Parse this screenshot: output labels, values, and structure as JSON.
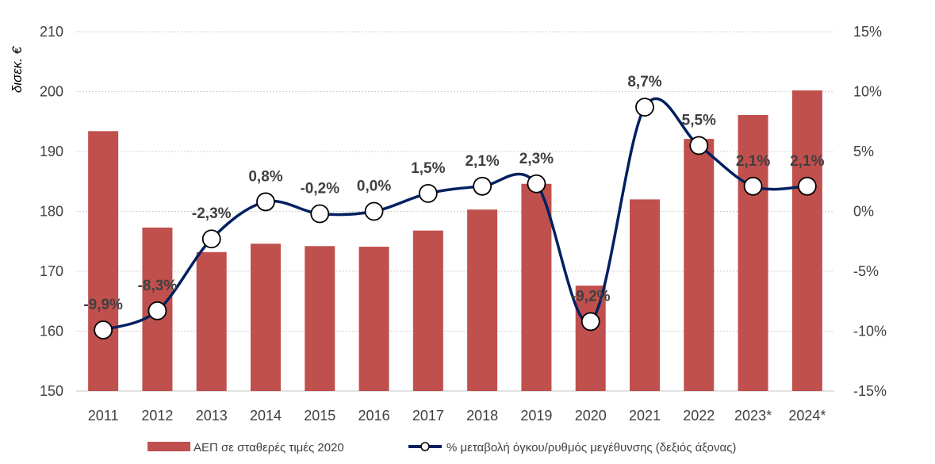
{
  "chart_data": {
    "type": "bar",
    "title": "",
    "xlabel": "",
    "ylabel": "δισεκ. €",
    "ylabel_right": "",
    "categories": [
      "2011",
      "2012",
      "2013",
      "2014",
      "2015",
      "2016",
      "2017",
      "2018",
      "2019",
      "2020",
      "2021",
      "2022",
      "2023*",
      "2024*"
    ],
    "ylim": [
      150,
      210
    ],
    "yticks": [
      150,
      160,
      170,
      180,
      190,
      200,
      210
    ],
    "ylim_right": [
      -15,
      15
    ],
    "yticks_right": [
      "-15%",
      "-10%",
      "-5%",
      "0%",
      "5%",
      "10%",
      "15%"
    ],
    "yticks_right_values": [
      -15,
      -10,
      -5,
      0,
      5,
      10,
      15
    ],
    "grid": true,
    "legend_position": "bottom",
    "series": [
      {
        "name": "ΑΕΠ σε σταθερές τιμές 2020",
        "type": "bar",
        "axis": "left",
        "color": "#C0504D",
        "values": [
          193.4,
          177.3,
          173.2,
          174.6,
          174.2,
          174.1,
          176.8,
          180.3,
          184.6,
          167.6,
          182.0,
          192.1,
          196.1,
          200.2
        ]
      },
      {
        "name": "% μεταβολή όγκου/ρυθμός μεγέθυνσης (δεξιός άξονας)",
        "type": "line",
        "axis": "right",
        "color": "#002060",
        "values": [
          -9.9,
          -8.3,
          -2.3,
          0.8,
          -0.2,
          0.0,
          1.5,
          2.1,
          2.3,
          -9.2,
          8.7,
          5.5,
          2.1,
          2.1
        ],
        "labels": [
          "-9,9%",
          "-8,3%",
          "-2,3%",
          "0,8%",
          "-0,2%",
          "0,0%",
          "1,5%",
          "2,1%",
          "2,3%",
          "-9,2%",
          "8,7%",
          "5,5%",
          "2,1%",
          "2,1%"
        ]
      }
    ]
  }
}
